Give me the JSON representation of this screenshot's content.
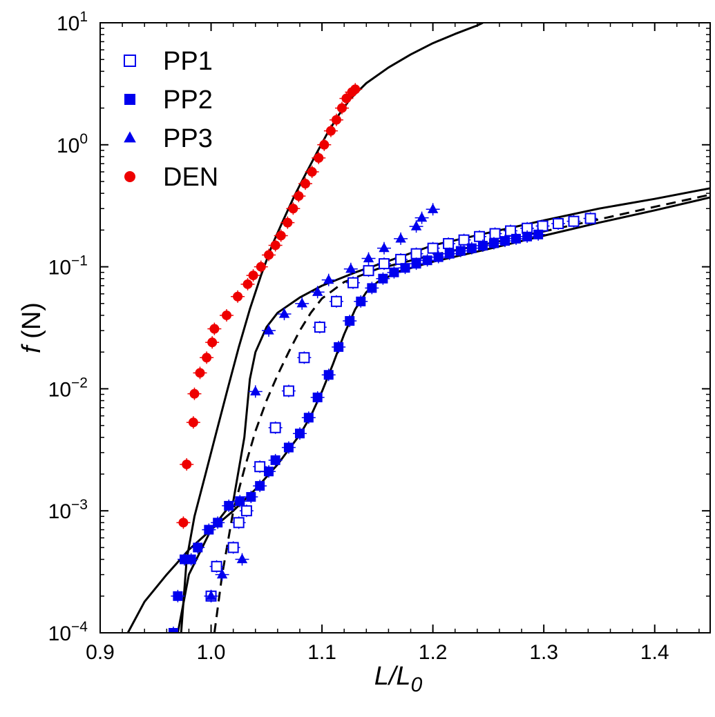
{
  "chart_data": {
    "type": "scatter",
    "xlabel": "L/L0",
    "xlabel_parts": {
      "main": "L/L",
      "sub": "0"
    },
    "ylabel": "f (N)",
    "ylabel_parts": {
      "italic": "f",
      "rest": " (N)"
    },
    "xlim": [
      0.9,
      1.45
    ],
    "ylim": [
      0.0001,
      10
    ],
    "yscale": "log",
    "x_ticks": [
      0.9,
      1.0,
      1.1,
      1.2,
      1.3,
      1.4
    ],
    "x_tick_labels": [
      "0.9",
      "1.0",
      "1.1",
      "1.2",
      "1.3",
      "1.4"
    ],
    "y_ticks": [
      {
        "value": 0.0001,
        "base": "10",
        "exp": "−4"
      },
      {
        "value": 0.001,
        "base": "10",
        "exp": "−3"
      },
      {
        "value": 0.01,
        "base": "10",
        "exp": "−2"
      },
      {
        "value": 0.1,
        "base": "10",
        "exp": "−1"
      },
      {
        "value": 1,
        "base": "10",
        "exp": "0"
      },
      {
        "value": 10,
        "base": "10",
        "exp": "1"
      }
    ],
    "legend_position": "top-left",
    "series": [
      {
        "name": "PP1",
        "marker": "open-square",
        "color": "#0000ee",
        "points": [
          [
            1.0,
            0.0002
          ],
          [
            1.005,
            0.00035
          ],
          [
            1.02,
            0.0005
          ],
          [
            1.025,
            0.0008
          ],
          [
            1.032,
            0.001
          ],
          [
            1.044,
            0.0023
          ],
          [
            1.058,
            0.0048
          ],
          [
            1.07,
            0.0096
          ],
          [
            1.084,
            0.018
          ],
          [
            1.098,
            0.032
          ],
          [
            1.113,
            0.052
          ],
          [
            1.128,
            0.074
          ],
          [
            1.142,
            0.093
          ],
          [
            1.156,
            0.106
          ],
          [
            1.171,
            0.115
          ],
          [
            1.185,
            0.128
          ],
          [
            1.2,
            0.142
          ],
          [
            1.214,
            0.155
          ],
          [
            1.228,
            0.166
          ],
          [
            1.242,
            0.177
          ],
          [
            1.256,
            0.187
          ],
          [
            1.27,
            0.197
          ],
          [
            1.285,
            0.207
          ],
          [
            1.299,
            0.216
          ],
          [
            1.313,
            0.226
          ],
          [
            1.327,
            0.236
          ],
          [
            1.342,
            0.249
          ]
        ]
      },
      {
        "name": "PP2",
        "marker": "filled-square",
        "color": "#0000ee",
        "points": [
          [
            0.966,
            0.0001
          ],
          [
            0.97,
            0.0002
          ],
          [
            0.976,
            0.0004
          ],
          [
            0.982,
            0.0004
          ],
          [
            0.988,
            0.0005
          ],
          [
            0.998,
            0.0007
          ],
          [
            1.006,
            0.0008
          ],
          [
            1.016,
            0.0011
          ],
          [
            1.026,
            0.0012
          ],
          [
            1.036,
            0.0013
          ],
          [
            1.044,
            0.0016
          ],
          [
            1.052,
            0.0021
          ],
          [
            1.058,
            0.0026
          ],
          [
            1.07,
            0.0033
          ],
          [
            1.08,
            0.0043
          ],
          [
            1.088,
            0.0058
          ],
          [
            1.096,
            0.0085
          ],
          [
            1.106,
            0.013
          ],
          [
            1.115,
            0.022
          ],
          [
            1.125,
            0.036
          ],
          [
            1.135,
            0.052
          ],
          [
            1.145,
            0.067
          ],
          [
            1.155,
            0.08
          ],
          [
            1.165,
            0.09
          ],
          [
            1.175,
            0.098
          ],
          [
            1.185,
            0.106
          ],
          [
            1.195,
            0.113
          ],
          [
            1.205,
            0.12
          ],
          [
            1.215,
            0.128
          ],
          [
            1.225,
            0.135
          ],
          [
            1.235,
            0.142
          ],
          [
            1.245,
            0.149
          ],
          [
            1.255,
            0.156
          ],
          [
            1.265,
            0.163
          ],
          [
            1.275,
            0.17
          ],
          [
            1.285,
            0.177
          ],
          [
            1.295,
            0.184
          ]
        ]
      },
      {
        "name": "PP3",
        "marker": "filled-triangle",
        "color": "#0000ee",
        "points": [
          [
            1.0,
            0.0002
          ],
          [
            1.01,
            0.0003
          ],
          [
            1.028,
            0.0004
          ],
          [
            1.04,
            0.0095
          ],
          [
            1.052,
            0.03
          ],
          [
            1.066,
            0.041
          ],
          [
            1.082,
            0.05
          ],
          [
            1.096,
            0.062
          ],
          [
            1.106,
            0.078
          ],
          [
            1.126,
            0.096
          ],
          [
            1.142,
            0.117
          ],
          [
            1.156,
            0.142
          ],
          [
            1.171,
            0.17
          ],
          [
            1.185,
            0.214
          ],
          [
            1.19,
            0.252
          ],
          [
            1.2,
            0.296
          ]
        ]
      },
      {
        "name": "DEN",
        "marker": "filled-circle",
        "color": "#ee0000",
        "points": [
          [
            0.975,
            0.0008
          ],
          [
            0.978,
            0.0024
          ],
          [
            0.984,
            0.0053
          ],
          [
            0.985,
            0.0091
          ],
          [
            0.99,
            0.0135
          ],
          [
            0.996,
            0.018
          ],
          [
            1.001,
            0.024
          ],
          [
            1.003,
            0.031
          ],
          [
            1.014,
            0.04
          ],
          [
            1.024,
            0.057
          ],
          [
            1.033,
            0.072
          ],
          [
            1.038,
            0.085
          ],
          [
            1.045,
            0.1
          ],
          [
            1.052,
            0.125
          ],
          [
            1.058,
            0.15
          ],
          [
            1.063,
            0.18
          ],
          [
            1.069,
            0.23
          ],
          [
            1.074,
            0.3
          ],
          [
            1.079,
            0.38
          ],
          [
            1.085,
            0.48
          ],
          [
            1.091,
            0.6
          ],
          [
            1.097,
            0.78
          ],
          [
            1.102,
            1.0
          ],
          [
            1.108,
            1.3
          ],
          [
            1.113,
            1.6
          ],
          [
            1.118,
            2.0
          ],
          [
            1.122,
            2.4
          ],
          [
            1.127,
            2.7
          ],
          [
            1.13,
            2.85
          ]
        ]
      }
    ],
    "fit_curves": [
      {
        "name": "DEN fit",
        "style": "solid",
        "points": [
          [
            0.973,
            0.0001
          ],
          [
            0.978,
            0.0004
          ],
          [
            0.985,
            0.0009
          ],
          [
            0.995,
            0.002
          ],
          [
            1.005,
            0.0045
          ],
          [
            1.015,
            0.01
          ],
          [
            1.025,
            0.022
          ],
          [
            1.035,
            0.045
          ],
          [
            1.045,
            0.085
          ],
          [
            1.055,
            0.15
          ],
          [
            1.065,
            0.24
          ],
          [
            1.075,
            0.38
          ],
          [
            1.085,
            0.57
          ],
          [
            1.095,
            0.85
          ],
          [
            1.105,
            1.25
          ],
          [
            1.115,
            1.75
          ],
          [
            1.125,
            2.35
          ],
          [
            1.14,
            3.2
          ],
          [
            1.16,
            4.3
          ],
          [
            1.18,
            5.5
          ],
          [
            1.2,
            6.8
          ],
          [
            1.22,
            8.1
          ],
          [
            1.24,
            9.5
          ],
          [
            1.245,
            10
          ]
        ]
      },
      {
        "name": "PP2 fit",
        "style": "solid",
        "points": [
          [
            0.925,
            0.0001
          ],
          [
            0.94,
            0.00018
          ],
          [
            0.96,
            0.0003
          ],
          [
            0.98,
            0.00048
          ],
          [
            1.0,
            0.0007
          ],
          [
            1.02,
            0.001
          ],
          [
            1.04,
            0.0015
          ],
          [
            1.06,
            0.0024
          ],
          [
            1.08,
            0.0042
          ],
          [
            1.09,
            0.006
          ],
          [
            1.1,
            0.0095
          ],
          [
            1.11,
            0.016
          ],
          [
            1.12,
            0.028
          ],
          [
            1.13,
            0.045
          ],
          [
            1.14,
            0.062
          ],
          [
            1.15,
            0.075
          ],
          [
            1.17,
            0.092
          ],
          [
            1.2,
            0.11
          ],
          [
            1.25,
            0.14
          ],
          [
            1.3,
            0.18
          ],
          [
            1.35,
            0.23
          ],
          [
            1.4,
            0.29
          ],
          [
            1.45,
            0.37
          ]
        ]
      },
      {
        "name": "PP3 fit",
        "style": "solid",
        "points": [
          [
            0.97,
            0.0001
          ],
          [
            0.98,
            0.0003
          ],
          [
            1.0,
            0.0007
          ],
          [
            1.02,
            0.0012
          ],
          [
            1.03,
            0.004
          ],
          [
            1.035,
            0.012
          ],
          [
            1.04,
            0.02
          ],
          [
            1.05,
            0.032
          ],
          [
            1.06,
            0.042
          ],
          [
            1.08,
            0.056
          ],
          [
            1.1,
            0.07
          ],
          [
            1.13,
            0.09
          ],
          [
            1.17,
            0.12
          ],
          [
            1.2,
            0.15
          ],
          [
            1.25,
            0.19
          ],
          [
            1.3,
            0.24
          ],
          [
            1.35,
            0.3
          ],
          [
            1.4,
            0.36
          ],
          [
            1.45,
            0.44
          ]
        ]
      },
      {
        "name": "PP1 fit",
        "style": "dashed",
        "points": [
          [
            1.003,
            0.0001
          ],
          [
            1.01,
            0.0003
          ],
          [
            1.02,
            0.001
          ],
          [
            1.03,
            0.0022
          ],
          [
            1.04,
            0.0045
          ],
          [
            1.05,
            0.008
          ],
          [
            1.06,
            0.013
          ],
          [
            1.07,
            0.02
          ],
          [
            1.08,
            0.03
          ],
          [
            1.09,
            0.042
          ],
          [
            1.1,
            0.055
          ],
          [
            1.12,
            0.075
          ],
          [
            1.15,
            0.096
          ],
          [
            1.2,
            0.125
          ],
          [
            1.25,
            0.155
          ],
          [
            1.3,
            0.195
          ],
          [
            1.35,
            0.245
          ],
          [
            1.4,
            0.31
          ],
          [
            1.45,
            0.39
          ]
        ]
      }
    ]
  }
}
